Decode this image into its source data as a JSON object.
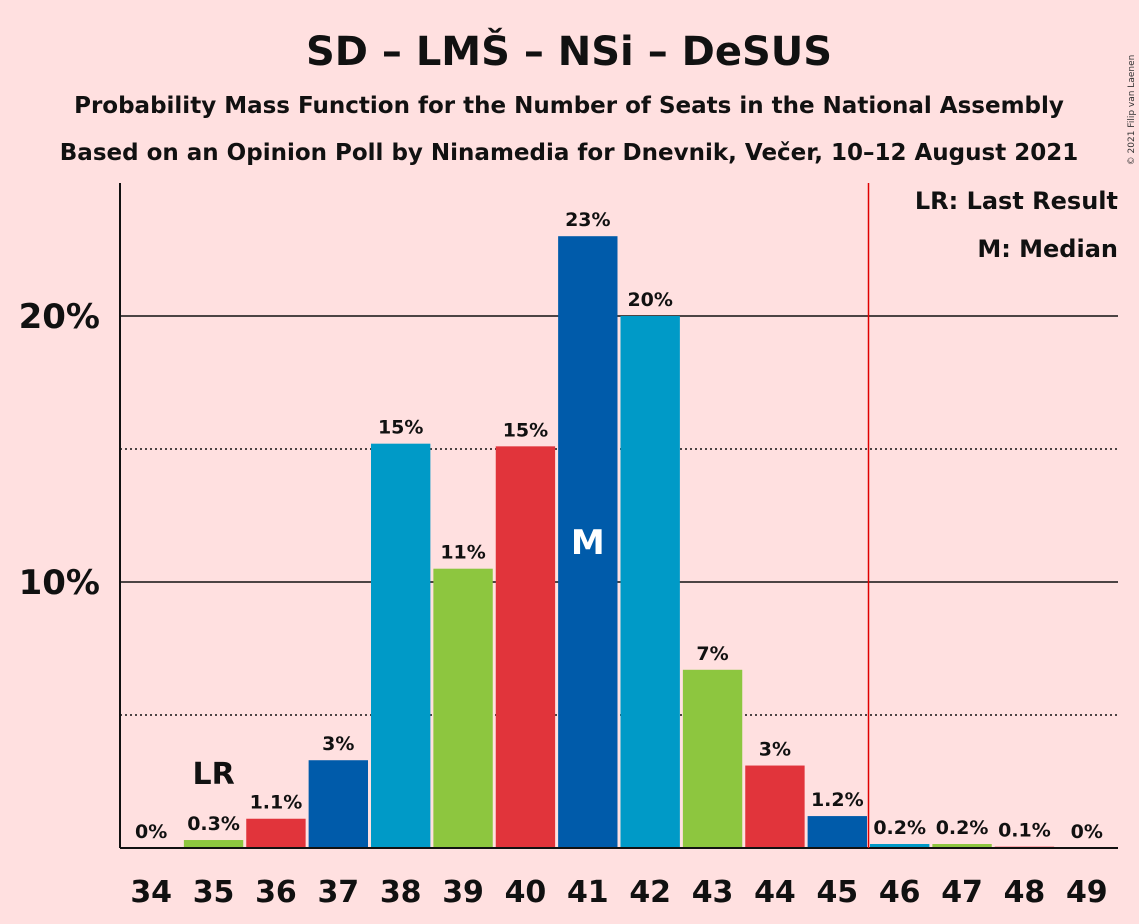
{
  "title": "SD – LMŠ – NSi – DeSUS",
  "subtitle1": "Probability Mass Function for the Number of Seats in the National Assembly",
  "subtitle2": "Based on an Opinion Poll by Ninamedia for Dnevnik, Večer, 10–12 August 2021",
  "copyright": "© 2021 Filip van Laenen",
  "legend": {
    "lr": "LR: Last Result",
    "median": "M: Median"
  },
  "markers": {
    "lr_label": "LR",
    "lr_seat": 35,
    "median_label": "M",
    "median_seat": 41,
    "majority_line_after": 45
  },
  "colors": {
    "background": "#FFE0E0",
    "majority_line": "#E00000",
    "palette": [
      "#005BAA",
      "#009AC7",
      "#8DC63F",
      "#E1343B"
    ]
  },
  "chart_data": {
    "type": "bar",
    "categories": [
      "34",
      "35",
      "36",
      "37",
      "38",
      "39",
      "40",
      "41",
      "42",
      "43",
      "44",
      "45",
      "46",
      "47",
      "48",
      "49"
    ],
    "values": [
      0,
      0.3,
      1.1,
      3.3,
      15.2,
      10.5,
      15.1,
      23.0,
      20.0,
      6.7,
      3.1,
      1.2,
      0.15,
      0.15,
      0.05,
      0
    ],
    "labels": [
      "0%",
      "0.3%",
      "1.1%",
      "3%",
      "15%",
      "11%",
      "15%",
      "23%",
      "20%",
      "7%",
      "3%",
      "1.2%",
      "0.2%",
      "0.2%",
      "0.1%",
      "0%"
    ],
    "bar_colors": [
      "#005BAA",
      "#8DC63F",
      "#E1343B",
      "#005BAA",
      "#009AC7",
      "#8DC63F",
      "#E1343B",
      "#005BAA",
      "#009AC7",
      "#8DC63F",
      "#E1343B",
      "#005BAA",
      "#009AC7",
      "#8DC63F",
      "#E1343B",
      "#005BAA"
    ],
    "yticks": [
      10,
      20
    ],
    "ytick_labels": [
      "10%",
      "20%"
    ],
    "minor_gridlines": [
      5,
      15
    ],
    "ylim": [
      0,
      25
    ],
    "xlabel": "",
    "ylabel": ""
  }
}
